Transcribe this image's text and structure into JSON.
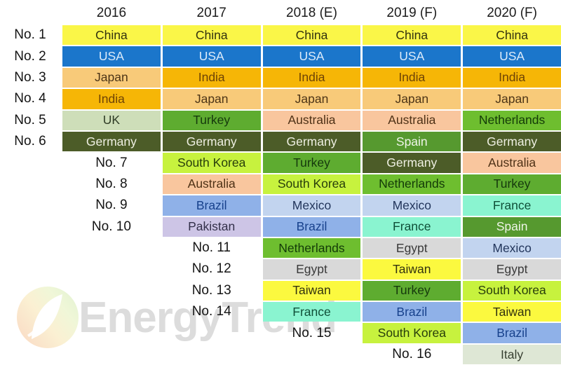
{
  "watermark": {
    "text": "EnergyTrend"
  },
  "header": {
    "corner": ""
  },
  "countries": {
    "China": {
      "bg": "#FAF648",
      "fg": "#33320f"
    },
    "USA": {
      "bg": "#1B76CB",
      "fg": "#DDEBF9"
    },
    "Japan": {
      "bg": "#F8CA79",
      "fg": "#4D3517"
    },
    "India": {
      "bg": "#F6B606",
      "fg": "#6E4305"
    },
    "UK": {
      "bg": "#CEDEB9",
      "fg": "#2F3C26"
    },
    "Germany": {
      "bg": "#4C5C28",
      "fg": "#EFF0E3"
    },
    "Turkey": {
      "bg": "#5EAC30",
      "fg": "#15380D"
    },
    "Australia": {
      "bg": "#F9C69E",
      "fg": "#4E3116"
    },
    "South Korea": {
      "bg": "#C7F23E",
      "fg": "#283E0B"
    },
    "Brazil": {
      "bg": "#8FB1E8",
      "fg": "#17418C"
    },
    "Pakistan": {
      "bg": "#CDC5E6",
      "fg": "#33304A"
    },
    "Mexico": {
      "bg": "#C2D4EF",
      "fg": "#23365C"
    },
    "Netherlands": {
      "bg": "#6EBE2F",
      "fg": "#133A08"
    },
    "Spain": {
      "bg": "#56992F",
      "fg": "#EFF5E9"
    },
    "France": {
      "bg": "#8AF4D0",
      "fg": "#0F4F38"
    },
    "Egypt": {
      "bg": "#D9D9D9",
      "fg": "#3A3A3A"
    },
    "Taiwan": {
      "bg": "#FBF93F",
      "fg": "#33330F"
    },
    "Italy": {
      "bg": "#DEE7D5",
      "fg": "#384032"
    }
  },
  "chart_data": {
    "type": "table",
    "title": "",
    "columns": [
      "2016",
      "2017",
      "2018 (E)",
      "2019 (F)",
      "2020 (F)"
    ],
    "row_labels": [
      "No. 1",
      "No. 2",
      "No. 3",
      "No. 4",
      "No. 5",
      "No. 6",
      "No. 7",
      "No. 8",
      "No. 9",
      "No. 10",
      "No. 11",
      "No. 12",
      "No. 13",
      "No. 14",
      "No. 15",
      "No. 16"
    ],
    "rankings": {
      "2016": [
        "China",
        "USA",
        "Japan",
        "India",
        "UK",
        "Germany"
      ],
      "2017": [
        "China",
        "USA",
        "India",
        "Japan",
        "Turkey",
        "Germany",
        "South Korea",
        "Australia",
        "Brazil",
        "Pakistan"
      ],
      "2018 (E)": [
        "China",
        "USA",
        "India",
        "Japan",
        "Australia",
        "Germany",
        "Turkey",
        "South Korea",
        "Mexico",
        "Brazil",
        "Netherlands",
        "Egypt",
        "Taiwan",
        "France"
      ],
      "2019 (F)": [
        "China",
        "USA",
        "India",
        "Japan",
        "Australia",
        "Spain",
        "Germany",
        "Netherlands",
        "Mexico",
        "France",
        "Egypt",
        "Taiwan",
        "Turkey",
        "Brazil",
        "South Korea"
      ],
      "2020 (F)": [
        "China",
        "USA",
        "India",
        "Japan",
        "Netherlands",
        "Germany",
        "Australia",
        "Turkey",
        "France",
        "Spain",
        "Mexico",
        "Egypt",
        "South Korea",
        "Taiwan",
        "Brazil",
        "Italy"
      ]
    }
  }
}
